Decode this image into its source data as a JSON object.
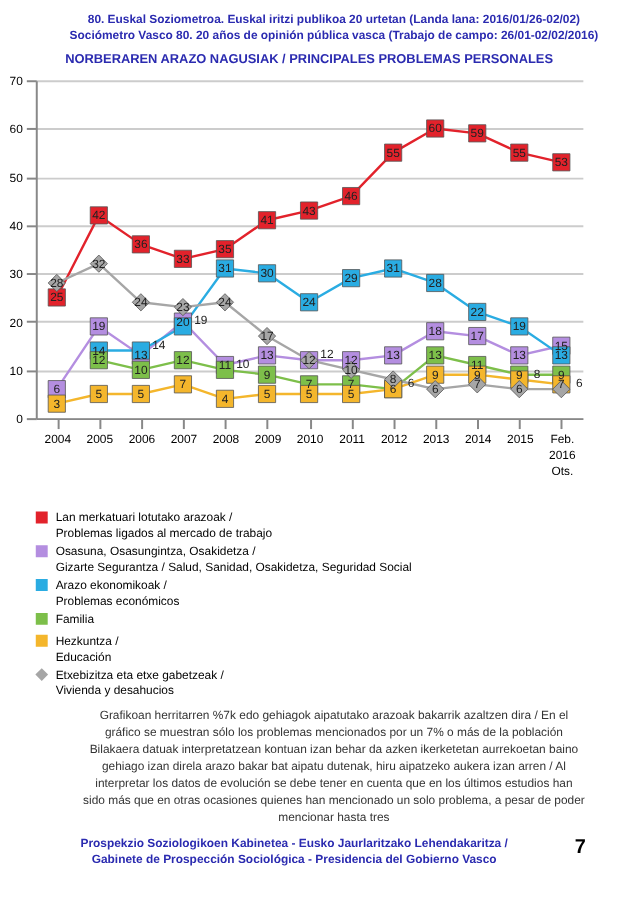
{
  "chart_data": {
    "type": "line",
    "title": "NORBERAREN ARAZO NAGUSIAK / PRINCIPALES PROBLEMAS PERSONALES",
    "categories": [
      "2004",
      "2005",
      "2006",
      "2007",
      "2008",
      "2009",
      "2010",
      "2011",
      "2012",
      "2013",
      "2014",
      "2015",
      "Feb. 2016 Ots."
    ],
    "series": [
      {
        "name": "Lan merkatuari lotutako arazoak / Problemas ligados al mercado de trabajo",
        "color": "#e2222b",
        "values": [
          25,
          42,
          36,
          33,
          35,
          41,
          43,
          46,
          55,
          60,
          59,
          55,
          53
        ]
      },
      {
        "name": "Osasuna, Osasungintza, Osakidetza / Gizarte Segurantza / Salud, Sanidad, Osakidetza, Seguridad Social",
        "color": "#b48ee0",
        "values": [
          6,
          19,
          13,
          20,
          11,
          13,
          12,
          12,
          13,
          18,
          17,
          13,
          15
        ]
      },
      {
        "name": "Arazo ekonomikoak / Problemas económicos",
        "color": "#2aace2",
        "values": [
          null,
          14,
          14,
          19,
          31,
          30,
          24,
          29,
          31,
          28,
          22,
          19,
          13
        ]
      },
      {
        "name": "Familia",
        "color": "#7dbf4a",
        "values": [
          null,
          12,
          10,
          12,
          10,
          9,
          7,
          7,
          6,
          13,
          11,
          9,
          9
        ]
      },
      {
        "name": "Hezkuntza / Educación",
        "color": "#f4b62c",
        "values": [
          3,
          5,
          5,
          7,
          4,
          5,
          5,
          5,
          6,
          9,
          9,
          8,
          7
        ]
      },
      {
        "name": "Etxebizitza eta etxe gabetzeak / Vivienda y desahucios",
        "color": "#a6a6a6",
        "marker": "diamond",
        "values": [
          28,
          32,
          24,
          23,
          24,
          17,
          12,
          10,
          8,
          6,
          7,
          6,
          6
        ]
      }
    ],
    "ylim": [
      0,
      70
    ],
    "yticks": [
      0,
      10,
      20,
      30,
      40,
      50,
      60,
      70
    ],
    "grid": "y",
    "legend": "bottom",
    "marker": "square",
    "data_labels": true,
    "annotations": [
      "80. Euskal Soziometroa. Euskal iritzi publikoa 20 urtetan (Landa lana: 2016/01/26-02/02)",
      "Sociómetro Vasco 80. 20 años de opinión pública vasca (Trabajo de campo: 26/01-02/02/2016)",
      "Grafikoan herritarren %7k edo gehiagok aipatutako arazoak bakarrik azaltzen dira / En el gráfico se muestran sólo los problemas mencionados por un 7% o más de la población",
      "Bilakaera datuak interpretatzean kontuan izan behar da azken ikerketetan aurrekoetan baino gehiago izan direla arazo bakar bat aipatu dutenak, hiru aipatzeko aukera izan arren / Al interpretar los datos de evolución se debe tener en cuenta que en los últimos estudios han sido más que en otras ocasiones quienes han mencionado un solo problema, a pesar de poder mencionar hasta tres",
      "Prospekzio Soziologikoen Kabinetea - Eusko Jaurlaritzako Lehendakaritza / Gabinete de Prospección Sociológica - Presidencia del Gobierno Vasco",
      "7"
    ]
  }
}
